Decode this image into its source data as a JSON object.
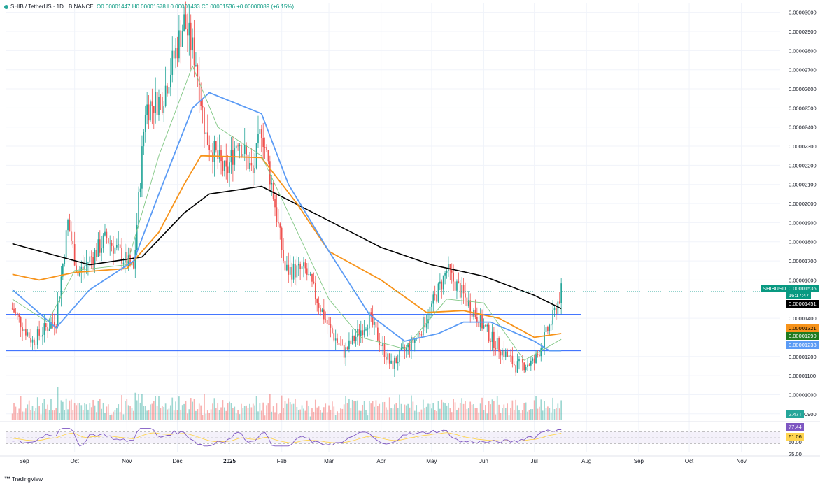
{
  "header": {
    "symbol": "SHIB / TetherUS · 1D · BINANCE",
    "ohlc": "O0.00001447 H0.00001578 L0.00001433 C0.00001536 +0.00000089 (+6.15%)"
  },
  "brand": "TradingView",
  "colors": {
    "up": "#26a69a",
    "down": "#ef5350",
    "sma_black": "#000000",
    "sma_orange": "#f7931a",
    "sma_blue": "#5b9bf5",
    "sma_green": "#81c784",
    "hline": "#2962ff",
    "rsi": "#7e57c2",
    "rsi_ma": "#ffd54f"
  },
  "price_axis_labels": [
    "0.00003000",
    "0.00002900",
    "0.00002800",
    "0.00002700",
    "0.00002600",
    "0.00002500",
    "0.00002400",
    "0.00002300",
    "0.00002200",
    "0.00002100",
    "0.00002000",
    "0.00001900",
    "0.00001800",
    "0.00001700",
    "0.00001600",
    "0.00001400",
    "0.00001200",
    "0.00001100",
    "0.00001000",
    "0.00000900"
  ],
  "x_axis_labels": [
    "Sep",
    "Oct",
    "Nov",
    "Dec",
    "2025",
    "Feb",
    "Mar",
    "Apr",
    "May",
    "Jun",
    "Jul",
    "Aug",
    "Sep",
    "Oct",
    "Nov"
  ],
  "badges": {
    "ticker": "SHIBUSDT",
    "last_price": "0.00001536",
    "countdown": "16:17:47",
    "sma_black_value": "0.00001451",
    "sma_orange_value": "0.00001321",
    "sma_green_value": "0.00001290",
    "sma_blue_value": "0.00001233",
    "volume": "2.47T"
  },
  "rsi_labels": {
    "value": "77.44",
    "ma": "61.06",
    "fifty": "50.00",
    "twenty_five": "25.00"
  },
  "chart_data": {
    "type": "candlestick",
    "instrument": "SHIB / TetherUS",
    "interval": "1D",
    "ylim": [
      8.7e-06,
      3.05e-05
    ],
    "horizontal_lines": [
      1.42e-05,
      1.23e-05
    ],
    "close_path": [
      {
        "x": "2024-08-25",
        "y": 1.45e-05
      },
      {
        "x": "2024-09-06",
        "y": 1.28e-05
      },
      {
        "x": "2024-09-20",
        "y": 1.4e-05
      },
      {
        "x": "2024-09-27",
        "y": 1.9e-05
      },
      {
        "x": "2024-10-03",
        "y": 1.63e-05
      },
      {
        "x": "2024-10-20",
        "y": 1.82e-05
      },
      {
        "x": "2024-11-05",
        "y": 1.65e-05
      },
      {
        "x": "2024-11-12",
        "y": 2.5e-05
      },
      {
        "x": "2024-11-22",
        "y": 2.55e-05
      },
      {
        "x": "2024-12-05",
        "y": 2.95e-05
      },
      {
        "x": "2024-12-12",
        "y": 2.75e-05
      },
      {
        "x": "2024-12-18",
        "y": 2.35e-05
      },
      {
        "x": "2024-12-30",
        "y": 2.15e-05
      },
      {
        "x": "2025-01-06",
        "y": 2.35e-05
      },
      {
        "x": "2025-01-15",
        "y": 2.15e-05
      },
      {
        "x": "2025-01-20",
        "y": 2.4e-05
      },
      {
        "x": "2025-01-27",
        "y": 2.05e-05
      },
      {
        "x": "2025-02-03",
        "y": 1.65e-05
      },
      {
        "x": "2025-02-15",
        "y": 1.65e-05
      },
      {
        "x": "2025-03-01",
        "y": 1.35e-05
      },
      {
        "x": "2025-03-10",
        "y": 1.22e-05
      },
      {
        "x": "2025-03-25",
        "y": 1.4e-05
      },
      {
        "x": "2025-04-07",
        "y": 1.15e-05
      },
      {
        "x": "2025-04-22",
        "y": 1.3e-05
      },
      {
        "x": "2025-04-28",
        "y": 1.4e-05
      },
      {
        "x": "2025-05-10",
        "y": 1.65e-05
      },
      {
        "x": "2025-05-25",
        "y": 1.45e-05
      },
      {
        "x": "2025-06-05",
        "y": 1.3e-05
      },
      {
        "x": "2025-06-20",
        "y": 1.15e-05
      },
      {
        "x": "2025-07-01",
        "y": 1.17e-05
      },
      {
        "x": "2025-07-12",
        "y": 1.4e-05
      },
      {
        "x": "2025-07-17",
        "y": 1.54e-05
      }
    ],
    "moving_averages": [
      {
        "name": "black",
        "path": [
          {
            "x": "2024-08-25",
            "y": 1.79e-05
          },
          {
            "x": "2024-10-10",
            "y": 1.68e-05
          },
          {
            "x": "2024-11-10",
            "y": 1.72e-05
          },
          {
            "x": "2024-12-05",
            "y": 1.95e-05
          },
          {
            "x": "2024-12-20",
            "y": 2.05e-05
          },
          {
            "x": "2025-01-20",
            "y": 2.09e-05
          },
          {
            "x": "2025-02-20",
            "y": 1.95e-05
          },
          {
            "x": "2025-04-01",
            "y": 1.77e-05
          },
          {
            "x": "2025-05-01",
            "y": 1.68e-05
          },
          {
            "x": "2025-06-01",
            "y": 1.62e-05
          },
          {
            "x": "2025-07-01",
            "y": 1.52e-05
          },
          {
            "x": "2025-07-17",
            "y": 1.45e-05
          }
        ]
      },
      {
        "name": "orange",
        "path": [
          {
            "x": "2024-08-25",
            "y": 1.63e-05
          },
          {
            "x": "2024-09-10",
            "y": 1.6e-05
          },
          {
            "x": "2024-10-01",
            "y": 1.64e-05
          },
          {
            "x": "2024-11-01",
            "y": 1.66e-05
          },
          {
            "x": "2024-11-20",
            "y": 1.85e-05
          },
          {
            "x": "2024-12-05",
            "y": 2.1e-05
          },
          {
            "x": "2024-12-15",
            "y": 2.25e-05
          },
          {
            "x": "2025-01-20",
            "y": 2.24e-05
          },
          {
            "x": "2025-02-10",
            "y": 2e-05
          },
          {
            "x": "2025-03-01",
            "y": 1.75e-05
          },
          {
            "x": "2025-04-01",
            "y": 1.6e-05
          },
          {
            "x": "2025-04-28",
            "y": 1.43e-05
          },
          {
            "x": "2025-05-20",
            "y": 1.44e-05
          },
          {
            "x": "2025-06-10",
            "y": 1.4e-05
          },
          {
            "x": "2025-07-01",
            "y": 1.3e-05
          },
          {
            "x": "2025-07-17",
            "y": 1.32e-05
          }
        ]
      },
      {
        "name": "blue",
        "path": [
          {
            "x": "2024-08-25",
            "y": 1.55e-05
          },
          {
            "x": "2024-09-20",
            "y": 1.35e-05
          },
          {
            "x": "2024-10-10",
            "y": 1.55e-05
          },
          {
            "x": "2024-11-05",
            "y": 1.7e-05
          },
          {
            "x": "2024-11-20",
            "y": 2.05e-05
          },
          {
            "x": "2024-12-10",
            "y": 2.5e-05
          },
          {
            "x": "2024-12-20",
            "y": 2.58e-05
          },
          {
            "x": "2025-01-20",
            "y": 2.47e-05
          },
          {
            "x": "2025-02-05",
            "y": 2.1e-05
          },
          {
            "x": "2025-03-01",
            "y": 1.75e-05
          },
          {
            "x": "2025-03-25",
            "y": 1.42e-05
          },
          {
            "x": "2025-04-15",
            "y": 1.28e-05
          },
          {
            "x": "2025-05-05",
            "y": 1.32e-05
          },
          {
            "x": "2025-05-20",
            "y": 1.38e-05
          },
          {
            "x": "2025-06-05",
            "y": 1.38e-05
          },
          {
            "x": "2025-07-01",
            "y": 1.28e-05
          },
          {
            "x": "2025-07-10",
            "y": 1.23e-05
          },
          {
            "x": "2025-07-17",
            "y": 1.23e-05
          }
        ]
      },
      {
        "name": "green",
        "path": [
          {
            "x": "2024-08-25",
            "y": 1.5e-05
          },
          {
            "x": "2024-09-15",
            "y": 1.38e-05
          },
          {
            "x": "2024-10-01",
            "y": 1.65e-05
          },
          {
            "x": "2024-11-01",
            "y": 1.68e-05
          },
          {
            "x": "2024-11-20",
            "y": 2.25e-05
          },
          {
            "x": "2024-12-10",
            "y": 2.72e-05
          },
          {
            "x": "2024-12-25",
            "y": 2.4e-05
          },
          {
            "x": "2025-01-20",
            "y": 2.25e-05
          },
          {
            "x": "2025-02-05",
            "y": 1.95e-05
          },
          {
            "x": "2025-03-01",
            "y": 1.5e-05
          },
          {
            "x": "2025-03-20",
            "y": 1.3e-05
          },
          {
            "x": "2025-04-15",
            "y": 1.24e-05
          },
          {
            "x": "2025-05-10",
            "y": 1.5e-05
          },
          {
            "x": "2025-06-01",
            "y": 1.48e-05
          },
          {
            "x": "2025-06-25",
            "y": 1.18e-05
          },
          {
            "x": "2025-07-17",
            "y": 1.29e-05
          }
        ]
      }
    ],
    "rsi": {
      "current": 77.44,
      "ma": 61.06,
      "levels": [
        70,
        50,
        30
      ]
    },
    "volume_last": "2.47T"
  }
}
